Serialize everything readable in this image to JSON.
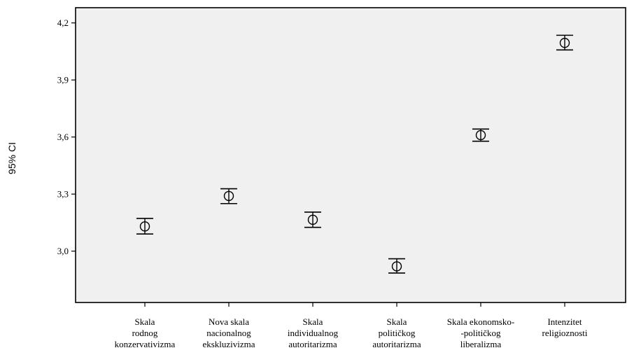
{
  "chart_data": {
    "type": "errorbar",
    "ylabel": "95% CI",
    "ylim": [
      2.73,
      4.28
    ],
    "yticks": [
      3.0,
      3.3,
      3.6,
      3.9,
      4.2
    ],
    "ytick_labels": [
      "3,0",
      "3,3",
      "3,6",
      "3,9",
      "4,2"
    ],
    "grid": false,
    "categories": [
      [
        "Skala",
        "rodnog",
        "konzervativizma"
      ],
      [
        "Nova skala",
        "nacionalnog",
        "ekskluzivizma"
      ],
      [
        "Skala",
        "individualnog",
        "autoritarizma"
      ],
      [
        "Skala",
        "političkog",
        "autoritarizma"
      ],
      [
        "Skala ekonomsko-",
        "-političkog",
        "liberalizma"
      ],
      [
        "Intenzitet",
        "religioznosti"
      ]
    ],
    "means": [
      3.13,
      3.29,
      3.165,
      2.92,
      3.61,
      4.095
    ],
    "lower": [
      3.09,
      3.25,
      3.125,
      2.885,
      3.578,
      4.058
    ],
    "upper": [
      3.172,
      3.328,
      3.205,
      2.96,
      3.642,
      4.135
    ],
    "colors": {
      "plot_bg": "#f0f0f0",
      "ink": "#000000"
    }
  }
}
